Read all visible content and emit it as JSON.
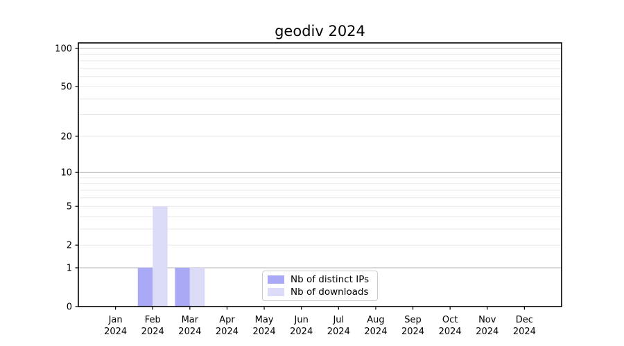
{
  "chart_data": {
    "type": "bar",
    "title": "geodiv 2024",
    "categories": [
      "Jan\n2024",
      "Feb\n2024",
      "Mar\n2024",
      "Apr\n2024",
      "May\n2024",
      "Jun\n2024",
      "Jul\n2024",
      "Aug\n2024",
      "Sep\n2024",
      "Oct\n2024",
      "Nov\n2024",
      "Dec\n2024"
    ],
    "series": [
      {
        "name": "Nb of distinct IPs",
        "color": "#a9a9f5",
        "values": [
          0,
          1,
          1,
          0,
          0,
          0,
          0,
          0,
          0,
          0,
          0,
          0
        ]
      },
      {
        "name": "Nb of downloads",
        "color": "#dcdcf9",
        "values": [
          0,
          5,
          1,
          0,
          0,
          0,
          0,
          0,
          0,
          0,
          0,
          0
        ]
      }
    ],
    "xlabel": "",
    "ylabel": "",
    "ylim": [
      0,
      100
    ],
    "yscale": "log1p",
    "yticks": [
      0,
      1,
      2,
      5,
      10,
      20,
      50,
      100
    ],
    "major_gridlines": [
      1,
      10,
      100
    ],
    "minor_gridlines": [
      2,
      3,
      4,
      5,
      6,
      7,
      8,
      9,
      20,
      30,
      40,
      50,
      60,
      70,
      80,
      90
    ],
    "grid": true,
    "legend_position": "bottom-center-inside",
    "colors": {
      "axis": "#000000",
      "grid_major": "#b4b4b4",
      "grid_minor": "#e9e9e9",
      "legend_border": "#cccccc",
      "background": "#ffffff"
    }
  }
}
